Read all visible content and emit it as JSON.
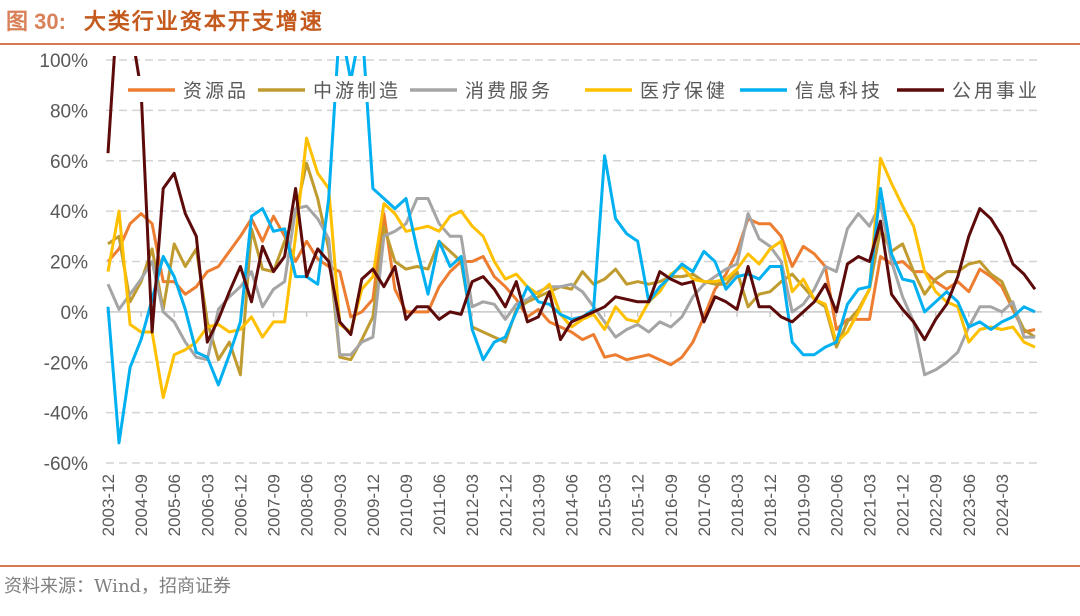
{
  "header": {
    "figure_no": "图 30:",
    "title": "大类行业资本开支增速"
  },
  "footer": {
    "source": "资料来源：Wind，招商证券"
  },
  "chart_data": {
    "type": "line",
    "title": "大类行业资本开支增速",
    "xlabel": "",
    "ylabel": "",
    "ylim": [
      -60,
      100
    ],
    "y_ticks": [
      "100%",
      "80%",
      "60%",
      "40%",
      "20%",
      "0%",
      "-20%",
      "-40%",
      "-60%"
    ],
    "y_tick_values": [
      100,
      80,
      60,
      40,
      20,
      0,
      -20,
      -40,
      -60
    ],
    "grid": "horizontal dashed",
    "legend": "top",
    "x": [
      "2003-12",
      "2004-03",
      "2004-06",
      "2004-09",
      "2004-12",
      "2005-03",
      "2005-06",
      "2005-09",
      "2005-12",
      "2006-03",
      "2006-06",
      "2006-09",
      "2006-12",
      "2007-03",
      "2007-06",
      "2007-09",
      "2007-12",
      "2008-03",
      "2008-06",
      "2008-09",
      "2008-12",
      "2009-03",
      "2009-06",
      "2009-09",
      "2009-12",
      "2010-03",
      "2010-06",
      "2010-09",
      "2010-12",
      "2011-03",
      "2011-06",
      "2011-09",
      "2011-12",
      "2012-03",
      "2012-06",
      "2012-09",
      "2012-12",
      "2013-03",
      "2013-06",
      "2013-09",
      "2013-12",
      "2014-03",
      "2014-06",
      "2014-09",
      "2014-12",
      "2015-03",
      "2015-06",
      "2015-09",
      "2015-12",
      "2016-03",
      "2016-06",
      "2016-09",
      "2016-12",
      "2017-03",
      "2017-06",
      "2017-09",
      "2017-12",
      "2018-03",
      "2018-06",
      "2018-09",
      "2018-12",
      "2019-03",
      "2019-06",
      "2019-09",
      "2019-12",
      "2020-03",
      "2020-06",
      "2020-09",
      "2020-12",
      "2021-03",
      "2021-06",
      "2021-09",
      "2021-12",
      "2022-03",
      "2022-06",
      "2022-09",
      "2022-12",
      "2023-03",
      "2023-06",
      "2023-09",
      "2023-12",
      "2024-03",
      "2024-06",
      "2024-09",
      "2024-12"
    ],
    "x_tick_labels": [
      "2003-12",
      "2004-09",
      "2005-06",
      "2006-03",
      "2006-12",
      "2007-09",
      "2008-06",
      "2009-03",
      "2009-12",
      "2010-09",
      "2011-06",
      "2012-03",
      "2012-12",
      "2013-09",
      "2014-06",
      "2015-03",
      "2015-12",
      "2016-09",
      "2017-06",
      "2018-03",
      "2018-12",
      "2019-09",
      "2020-06",
      "2021-03",
      "2021-12",
      "2022-09",
      "2023-06",
      "2024-03"
    ],
    "series": [
      {
        "name": "资源品",
        "color": "#ED7D31",
        "values": [
          20,
          25,
          35,
          39,
          35,
          12,
          12,
          7,
          10,
          16,
          18,
          24,
          30,
          37,
          28,
          38,
          30,
          20,
          28,
          21,
          18,
          16,
          -2,
          0,
          5,
          39,
          9,
          0,
          0,
          0,
          10,
          16,
          20,
          20,
          22,
          14,
          10,
          5,
          -2,
          1,
          -4,
          -6,
          -8,
          -11,
          -9,
          -18,
          -17,
          -19,
          -18,
          -17,
          -19,
          -21,
          -18,
          -12,
          -2,
          9,
          15,
          24,
          37,
          35,
          35,
          30,
          18,
          26,
          23,
          18,
          -7,
          -3,
          -3,
          -3,
          22,
          19,
          20,
          16,
          16,
          12,
          9,
          12,
          8,
          17,
          14,
          10,
          1,
          -8,
          -7
        ]
      },
      {
        "name": "中游制造",
        "color": "#BF9B30",
        "values": [
          27,
          30,
          4,
          12,
          25,
          1,
          27,
          18,
          25,
          -4,
          -19,
          -12,
          -25,
          33,
          17,
          16,
          28,
          39,
          59,
          45,
          25,
          -18,
          -19,
          -11,
          -2,
          34,
          20,
          17,
          18,
          17,
          28,
          24,
          20,
          -6,
          -8,
          -10,
          -12,
          1,
          4,
          6,
          8,
          10,
          9,
          16,
          11,
          13,
          17,
          11,
          12,
          11,
          12,
          14,
          14,
          15,
          12,
          11,
          11,
          16,
          2,
          7,
          8,
          12,
          15,
          10,
          5,
          2,
          -14,
          -4,
          1,
          9,
          33,
          24,
          27,
          16,
          7,
          13,
          16,
          16,
          19,
          20,
          15,
          12,
          2,
          -7,
          -10
        ]
      },
      {
        "name": "消费服务",
        "color": "#A5A5A5",
        "values": [
          11,
          1,
          7,
          13,
          20,
          0,
          -4,
          -12,
          -18,
          -19,
          1,
          6,
          10,
          16,
          2,
          9,
          12,
          41,
          42,
          37,
          29,
          -17,
          -17,
          -12,
          -10,
          30,
          32,
          35,
          45,
          45,
          35,
          30,
          30,
          2,
          4,
          3,
          -3,
          3,
          5,
          8,
          10,
          10,
          11,
          8,
          2,
          -4,
          -10,
          -7,
          -5,
          -8,
          -4,
          -6,
          -2,
          6,
          11,
          14,
          17,
          19,
          39,
          29,
          26,
          20,
          0,
          3,
          9,
          18,
          16,
          33,
          39,
          34,
          43,
          20,
          6,
          -4,
          -25,
          -23,
          -20,
          -16,
          -6,
          2,
          2,
          0,
          4,
          -10,
          -10
        ]
      },
      {
        "name": "医疗保健",
        "color": "#FFC000",
        "values": [
          16,
          40,
          -5,
          -8,
          -8,
          -34,
          -17,
          -15,
          -12,
          -6,
          -5,
          -8,
          -7,
          -2,
          -10,
          -4,
          -4,
          30,
          69,
          55,
          49,
          -5,
          -8,
          9,
          14,
          43,
          39,
          32,
          33,
          34,
          32,
          38,
          40,
          34,
          30,
          20,
          13,
          15,
          10,
          7,
          11,
          -1,
          -6,
          -3,
          -1,
          -7,
          2,
          -3,
          -4,
          4,
          8,
          15,
          18,
          13,
          12,
          12,
          13,
          17,
          23,
          19,
          25,
          28,
          8,
          13,
          5,
          3,
          -12,
          -8,
          0,
          9,
          61,
          51,
          42,
          34,
          16,
          8,
          4,
          2,
          -12,
          -7,
          -6,
          -7,
          -6,
          -12,
          -14
        ]
      },
      {
        "name": "信息科技",
        "color": "#00B0F0",
        "values": [
          2,
          -52,
          -22,
          -11,
          5,
          22,
          14,
          1,
          -16,
          -18,
          -29,
          -17,
          -4,
          38,
          41,
          32,
          33,
          14,
          14,
          11,
          45,
          115,
          92,
          115,
          49,
          45,
          41,
          45,
          25,
          7,
          28,
          18,
          22,
          -7,
          -19,
          -12,
          -10,
          0,
          10,
          4,
          3,
          -1,
          -3,
          -2,
          1,
          62,
          37,
          31,
          28,
          4,
          10,
          14,
          19,
          16,
          24,
          20,
          9,
          14,
          15,
          13,
          18,
          18,
          -12,
          -17,
          -17,
          -14,
          -12,
          3,
          9,
          10,
          49,
          23,
          13,
          12,
          0,
          4,
          8,
          4,
          -6,
          -4,
          -7,
          -4,
          -2,
          2,
          0
        ]
      },
      {
        "name": "公用事业",
        "color": "#5C0A0A",
        "values": [
          63,
          130,
          115,
          88,
          -8,
          49,
          55,
          39,
          30,
          -12,
          -3,
          8,
          18,
          4,
          26,
          16,
          22,
          49,
          14,
          25,
          20,
          -4,
          -9,
          13,
          17,
          10,
          18,
          -3,
          2,
          2,
          -3,
          0,
          -1,
          12,
          14,
          9,
          2,
          12,
          -4,
          -2,
          8,
          -11,
          -4,
          -2,
          0,
          2,
          6,
          5,
          4,
          4,
          16,
          13,
          11,
          12,
          -4,
          6,
          4,
          1,
          18,
          2,
          2,
          -2,
          -4,
          0,
          4,
          11,
          0,
          19,
          22,
          20,
          36,
          7,
          1,
          -4,
          -11,
          -3,
          3,
          14,
          30,
          41,
          37,
          30,
          19,
          15,
          9
        ]
      }
    ]
  }
}
